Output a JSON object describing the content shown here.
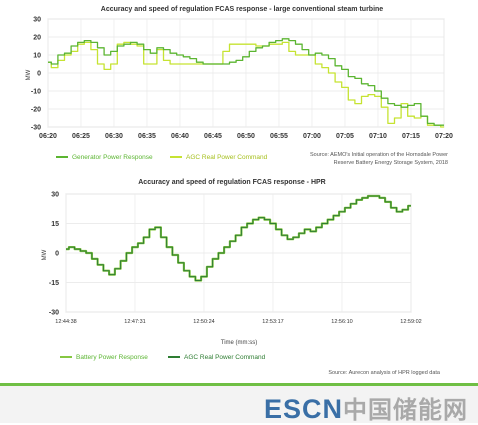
{
  "charts": [
    {
      "type": "line",
      "title": "Accuracy and speed of regulation FCAS response - large conventional steam turbine",
      "ylabel": "MW",
      "xlabel": "",
      "x_ticks": [
        "06:20",
        "06:25",
        "06:30",
        "06:35",
        "06:40",
        "06:45",
        "06:50",
        "06:55",
        "07:00",
        "07:05",
        "07:10",
        "07:15",
        "07:20"
      ],
      "y_ticks": [
        30,
        20,
        10,
        0,
        -10,
        -20,
        -30
      ],
      "xlim": [
        0,
        60
      ],
      "ylim": [
        -30,
        30
      ],
      "legend": [
        "Generator Power Response",
        "AGC Real Power Command"
      ],
      "source": [
        "Source: AEMO's Initial operation of the Hornsdale Power",
        "Reserve Battery Energy Storage System, 2018"
      ],
      "series": [
        {
          "name": "Generator Power Response",
          "color": "#5bb531",
          "points": [
            [
              0,
              6
            ],
            [
              1,
              5
            ],
            [
              2,
              10
            ],
            [
              3,
              11
            ],
            [
              4,
              15
            ],
            [
              5,
              17
            ],
            [
              6,
              18
            ],
            [
              7,
              17
            ],
            [
              8,
              14
            ],
            [
              9,
              10
            ],
            [
              10,
              12
            ],
            [
              11,
              15
            ],
            [
              12,
              16
            ],
            [
              13,
              17
            ],
            [
              14,
              16
            ],
            [
              15,
              13
            ],
            [
              16,
              11
            ],
            [
              17,
              14
            ],
            [
              18,
              13
            ],
            [
              19,
              11
            ],
            [
              20,
              10
            ],
            [
              21,
              9
            ],
            [
              22,
              8
            ],
            [
              23,
              6
            ],
            [
              24,
              5
            ],
            [
              25,
              5
            ],
            [
              26,
              5
            ],
            [
              27,
              5
            ],
            [
              28,
              6
            ],
            [
              29,
              7
            ],
            [
              30,
              9
            ],
            [
              31,
              12
            ],
            [
              32,
              14
            ],
            [
              33,
              15
            ],
            [
              34,
              17
            ],
            [
              35,
              18
            ],
            [
              36,
              19
            ],
            [
              37,
              18
            ],
            [
              38,
              16
            ],
            [
              39,
              13
            ],
            [
              40,
              10
            ],
            [
              41,
              11
            ],
            [
              42,
              10
            ],
            [
              43,
              8
            ],
            [
              44,
              4
            ],
            [
              45,
              2
            ],
            [
              46,
              -2
            ],
            [
              47,
              -3
            ],
            [
              48,
              -6
            ],
            [
              49,
              -7
            ],
            [
              50,
              -10
            ],
            [
              51,
              -14
            ],
            [
              52,
              -17
            ],
            [
              53,
              -18
            ],
            [
              54,
              -19
            ],
            [
              55,
              -18
            ],
            [
              56,
              -17
            ],
            [
              57,
              -24
            ],
            [
              58,
              -28
            ],
            [
              59,
              -29
            ],
            [
              60,
              -29
            ]
          ]
        },
        {
          "name": "AGC Real Power Command",
          "color": "#c6e332",
          "points": [
            [
              0,
              6
            ],
            [
              1,
              3
            ],
            [
              2,
              7
            ],
            [
              3,
              10
            ],
            [
              4,
              12
            ],
            [
              5,
              16
            ],
            [
              6,
              17
            ],
            [
              7,
              13
            ],
            [
              8,
              5
            ],
            [
              9,
              2
            ],
            [
              10,
              5
            ],
            [
              11,
              16
            ],
            [
              12,
              17
            ],
            [
              13,
              16
            ],
            [
              14,
              15
            ],
            [
              15,
              5
            ],
            [
              16,
              5
            ],
            [
              17,
              13
            ],
            [
              18,
              7
            ],
            [
              19,
              5
            ],
            [
              20,
              5
            ],
            [
              21,
              5
            ],
            [
              22,
              5
            ],
            [
              23,
              5
            ],
            [
              24,
              5
            ],
            [
              25,
              5
            ],
            [
              26,
              5
            ],
            [
              27,
              12
            ],
            [
              28,
              16
            ],
            [
              29,
              16
            ],
            [
              30,
              16
            ],
            [
              31,
              16
            ],
            [
              32,
              15
            ],
            [
              33,
              15
            ],
            [
              34,
              16
            ],
            [
              35,
              16
            ],
            [
              36,
              17
            ],
            [
              37,
              12
            ],
            [
              38,
              10
            ],
            [
              39,
              10
            ],
            [
              40,
              10
            ],
            [
              41,
              5
            ],
            [
              42,
              3
            ],
            [
              43,
              0
            ],
            [
              44,
              -5
            ],
            [
              45,
              -8
            ],
            [
              46,
              -15
            ],
            [
              47,
              -17
            ],
            [
              48,
              -13
            ],
            [
              49,
              -12
            ],
            [
              50,
              -13
            ],
            [
              51,
              -19
            ],
            [
              52,
              -28
            ],
            [
              53,
              -25
            ],
            [
              54,
              -17
            ],
            [
              55,
              -24
            ],
            [
              56,
              -25
            ],
            [
              57,
              -24
            ],
            [
              58,
              -29
            ],
            [
              59,
              -29
            ],
            [
              60,
              -30
            ]
          ]
        }
      ]
    },
    {
      "type": "line",
      "title": "Accuracy and speed of regulation FCAS response - HPR",
      "ylabel": "MW",
      "xlabel": "Time (mm:ss)",
      "x_ticks": [
        "12:44:38",
        "12:47:31",
        "12:50:24",
        "12:53:17",
        "12:56:10",
        "12:59:02"
      ],
      "y_ticks": [
        30,
        15,
        0,
        -15,
        -30
      ],
      "xlim": [
        0,
        60
      ],
      "ylim": [
        -30,
        30
      ],
      "legend": [
        "Battery Power Response",
        "AGC Real Power Command"
      ],
      "source": [
        "Source: Aurecon analysis of HPR logged data"
      ],
      "series": [
        {
          "name": "Battery Power Response",
          "color": "#86c742",
          "points": [
            [
              0,
              2
            ],
            [
              1,
              3
            ],
            [
              2,
              2
            ],
            [
              3,
              1
            ],
            [
              4,
              0
            ],
            [
              5,
              -3
            ],
            [
              6,
              -6
            ],
            [
              7,
              -9
            ],
            [
              8,
              -11
            ],
            [
              9,
              -8
            ],
            [
              10,
              -4
            ],
            [
              11,
              0
            ],
            [
              12,
              3
            ],
            [
              13,
              5
            ],
            [
              14,
              8
            ],
            [
              15,
              12
            ],
            [
              16,
              13
            ],
            [
              17,
              8
            ],
            [
              18,
              3
            ],
            [
              19,
              -1
            ],
            [
              20,
              -5
            ],
            [
              21,
              -9
            ],
            [
              22,
              -12
            ],
            [
              23,
              -14
            ],
            [
              24,
              -12
            ],
            [
              25,
              -7
            ],
            [
              26,
              -3
            ],
            [
              27,
              0
            ],
            [
              28,
              3
            ],
            [
              29,
              6
            ],
            [
              30,
              9
            ],
            [
              31,
              13
            ],
            [
              32,
              15
            ],
            [
              33,
              17
            ],
            [
              34,
              18
            ],
            [
              35,
              17
            ],
            [
              36,
              15
            ],
            [
              37,
              12
            ],
            [
              38,
              9
            ],
            [
              39,
              7
            ],
            [
              40,
              8
            ],
            [
              41,
              10
            ],
            [
              42,
              12
            ],
            [
              43,
              11
            ],
            [
              44,
              13
            ],
            [
              45,
              15
            ],
            [
              46,
              17
            ],
            [
              47,
              19
            ],
            [
              48,
              21
            ],
            [
              49,
              23
            ],
            [
              50,
              25
            ],
            [
              51,
              27
            ],
            [
              52,
              28
            ],
            [
              53,
              29
            ],
            [
              54,
              29
            ],
            [
              55,
              28
            ],
            [
              56,
              26
            ],
            [
              57,
              23
            ],
            [
              58,
              21
            ],
            [
              59,
              22
            ],
            [
              60,
              24
            ]
          ]
        },
        {
          "name": "AGC Real Power Command",
          "color": "#2e7d32",
          "points": [
            [
              0,
              2
            ],
            [
              1,
              3
            ],
            [
              2,
              2
            ],
            [
              3,
              1
            ],
            [
              4,
              0
            ],
            [
              5,
              -3
            ],
            [
              6,
              -6
            ],
            [
              7,
              -9
            ],
            [
              8,
              -11
            ],
            [
              9,
              -8
            ],
            [
              10,
              -4
            ],
            [
              11,
              0
            ],
            [
              12,
              3
            ],
            [
              13,
              5
            ],
            [
              14,
              8
            ],
            [
              15,
              12
            ],
            [
              16,
              13
            ],
            [
              17,
              8
            ],
            [
              18,
              3
            ],
            [
              19,
              -1
            ],
            [
              20,
              -5
            ],
            [
              21,
              -9
            ],
            [
              22,
              -12
            ],
            [
              23,
              -14
            ],
            [
              24,
              -12
            ],
            [
              25,
              -7
            ],
            [
              26,
              -3
            ],
            [
              27,
              0
            ],
            [
              28,
              3
            ],
            [
              29,
              6
            ],
            [
              30,
              9
            ],
            [
              31,
              13
            ],
            [
              32,
              15
            ],
            [
              33,
              17
            ],
            [
              34,
              18
            ],
            [
              35,
              17
            ],
            [
              36,
              15
            ],
            [
              37,
              12
            ],
            [
              38,
              9
            ],
            [
              39,
              7
            ],
            [
              40,
              8
            ],
            [
              41,
              10
            ],
            [
              42,
              12
            ],
            [
              43,
              11
            ],
            [
              44,
              13
            ],
            [
              45,
              15
            ],
            [
              46,
              17
            ],
            [
              47,
              19
            ],
            [
              48,
              21
            ],
            [
              49,
              23
            ],
            [
              50,
              25
            ],
            [
              51,
              27
            ],
            [
              52,
              28
            ],
            [
              53,
              29
            ],
            [
              54,
              29
            ],
            [
              55,
              28
            ],
            [
              56,
              26
            ],
            [
              57,
              23
            ],
            [
              58,
              21
            ],
            [
              59,
              22
            ],
            [
              60,
              24
            ]
          ]
        }
      ]
    }
  ],
  "logo": {
    "en": "ESCN",
    "cn": "中国储能网"
  }
}
